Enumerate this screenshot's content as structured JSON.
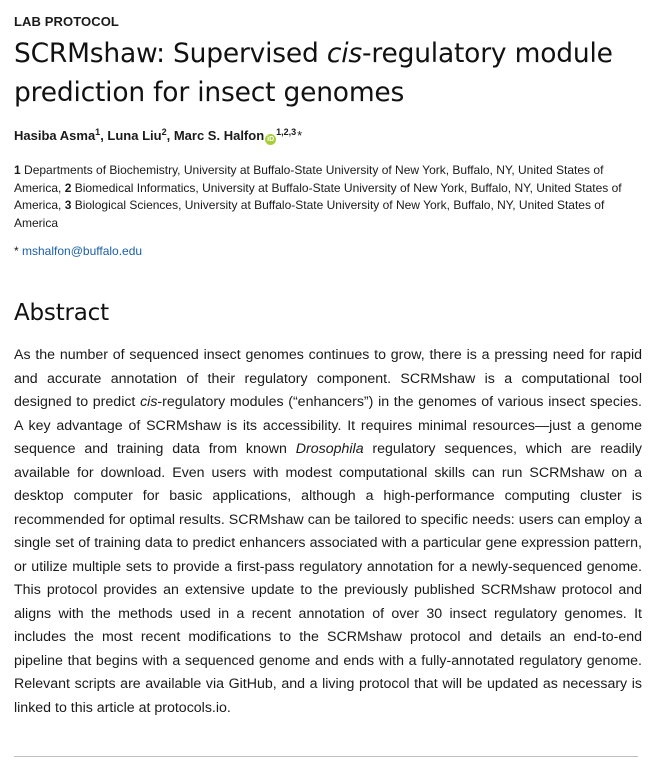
{
  "article_type": "LAB PROTOCOL",
  "title": {
    "part1": "SCRMshaw: Supervised ",
    "italic": "cis",
    "part2": "-regulatory module prediction for insect genomes"
  },
  "authors": [
    {
      "name": "Hasiba Asma",
      "aff": "1"
    },
    {
      "name": "Luna Liu",
      "aff": "2"
    },
    {
      "name": "Marc S. Halfon",
      "aff": "1,2,3"
    }
  ],
  "author_separator": ", ",
  "orcid_icon": "iD",
  "corresponding_marker": "*",
  "affiliations": [
    {
      "num": "1",
      "text": " Departments of Biochemistry, University at Buffalo-State University of New York, Buffalo, NY, United States of America, "
    },
    {
      "num": "2",
      "text": " Biomedical Informatics, University at Buffalo-State University of New York, Buffalo, NY, United States of America, "
    },
    {
      "num": "3",
      "text": " Biological Sciences, University at Buffalo-State University of New York, Buffalo, NY, United States of America"
    }
  ],
  "correspondence": {
    "marker": "* ",
    "email": "mshalfon@buffalo.edu"
  },
  "abstract": {
    "heading": "Abstract",
    "seg1": "As the number of sequenced insect genomes continues to grow, there is a pressing need for rapid and accurate annotation of their regulatory component. SCRMshaw is a computational tool designed to predict ",
    "italic1": "cis",
    "seg2": "-regulatory modules (“enhancers”) in the genomes of various insect species. A key advantage of SCRMshaw is its accessibility. It requires minimal resources—just a genome sequence and training data from known ",
    "italic2": "Drosophila",
    "seg3": " regulatory sequences, which are readily available for download. Even users with modest computational skills can run SCRMshaw on a desktop computer for basic applications, although a high-performance computing cluster is recommended for optimal results. SCRMshaw can be tailored to specific needs: users can employ a single set of training data to predict enhancers associated with a particular gene expression pattern, or utilize multiple sets to provide a first-pass regulatory annotation for a newly-sequenced genome. This protocol provides an extensive update to the previously published SCRMshaw protocol and aligns with the methods used in a recent annotation of over 30 insect regulatory genomes. It includes the most recent modifications to the SCRMshaw protocol and details an end-to-end pipeline that begins with a sequenced genome and ends with a fully-annotated regulatory genome. Relevant scripts are available via GitHub, and a living protocol that will be updated as necessary is linked to this article at protocols.io."
  }
}
